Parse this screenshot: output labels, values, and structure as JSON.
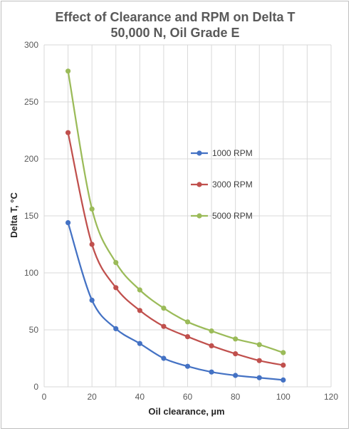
{
  "chart_data": {
    "type": "line",
    "title_line1": "Effect of Clearance and RPM on Delta T",
    "title_line2": "50,000 N, Oil Grade E",
    "xlabel": "Oil clearance, µm",
    "ylabel": "Delta T, °C",
    "xlim": [
      0,
      120
    ],
    "ylim": [
      0,
      300
    ],
    "x_ticks": [
      "0",
      "20",
      "40",
      "60",
      "80",
      "100",
      "120"
    ],
    "y_ticks": [
      "0",
      "50",
      "100",
      "150",
      "200",
      "250",
      "300"
    ],
    "grid": true,
    "legend_position": "right-middle",
    "x": [
      10,
      20,
      30,
      40,
      50,
      60,
      70,
      80,
      90,
      100
    ],
    "series": [
      {
        "name": "1000 RPM",
        "color": "#4472c4",
        "values": [
          144,
          76,
          51,
          38,
          25,
          18,
          13,
          10,
          8,
          6
        ]
      },
      {
        "name": "3000 RPM",
        "color": "#c0504d",
        "values": [
          223,
          125,
          87,
          67,
          53,
          44,
          36,
          29,
          23,
          19
        ]
      },
      {
        "name": "5000 RPM",
        "color": "#9bbb59",
        "values": [
          277,
          156,
          109,
          85,
          69,
          57,
          49,
          42,
          37,
          30
        ]
      }
    ]
  }
}
